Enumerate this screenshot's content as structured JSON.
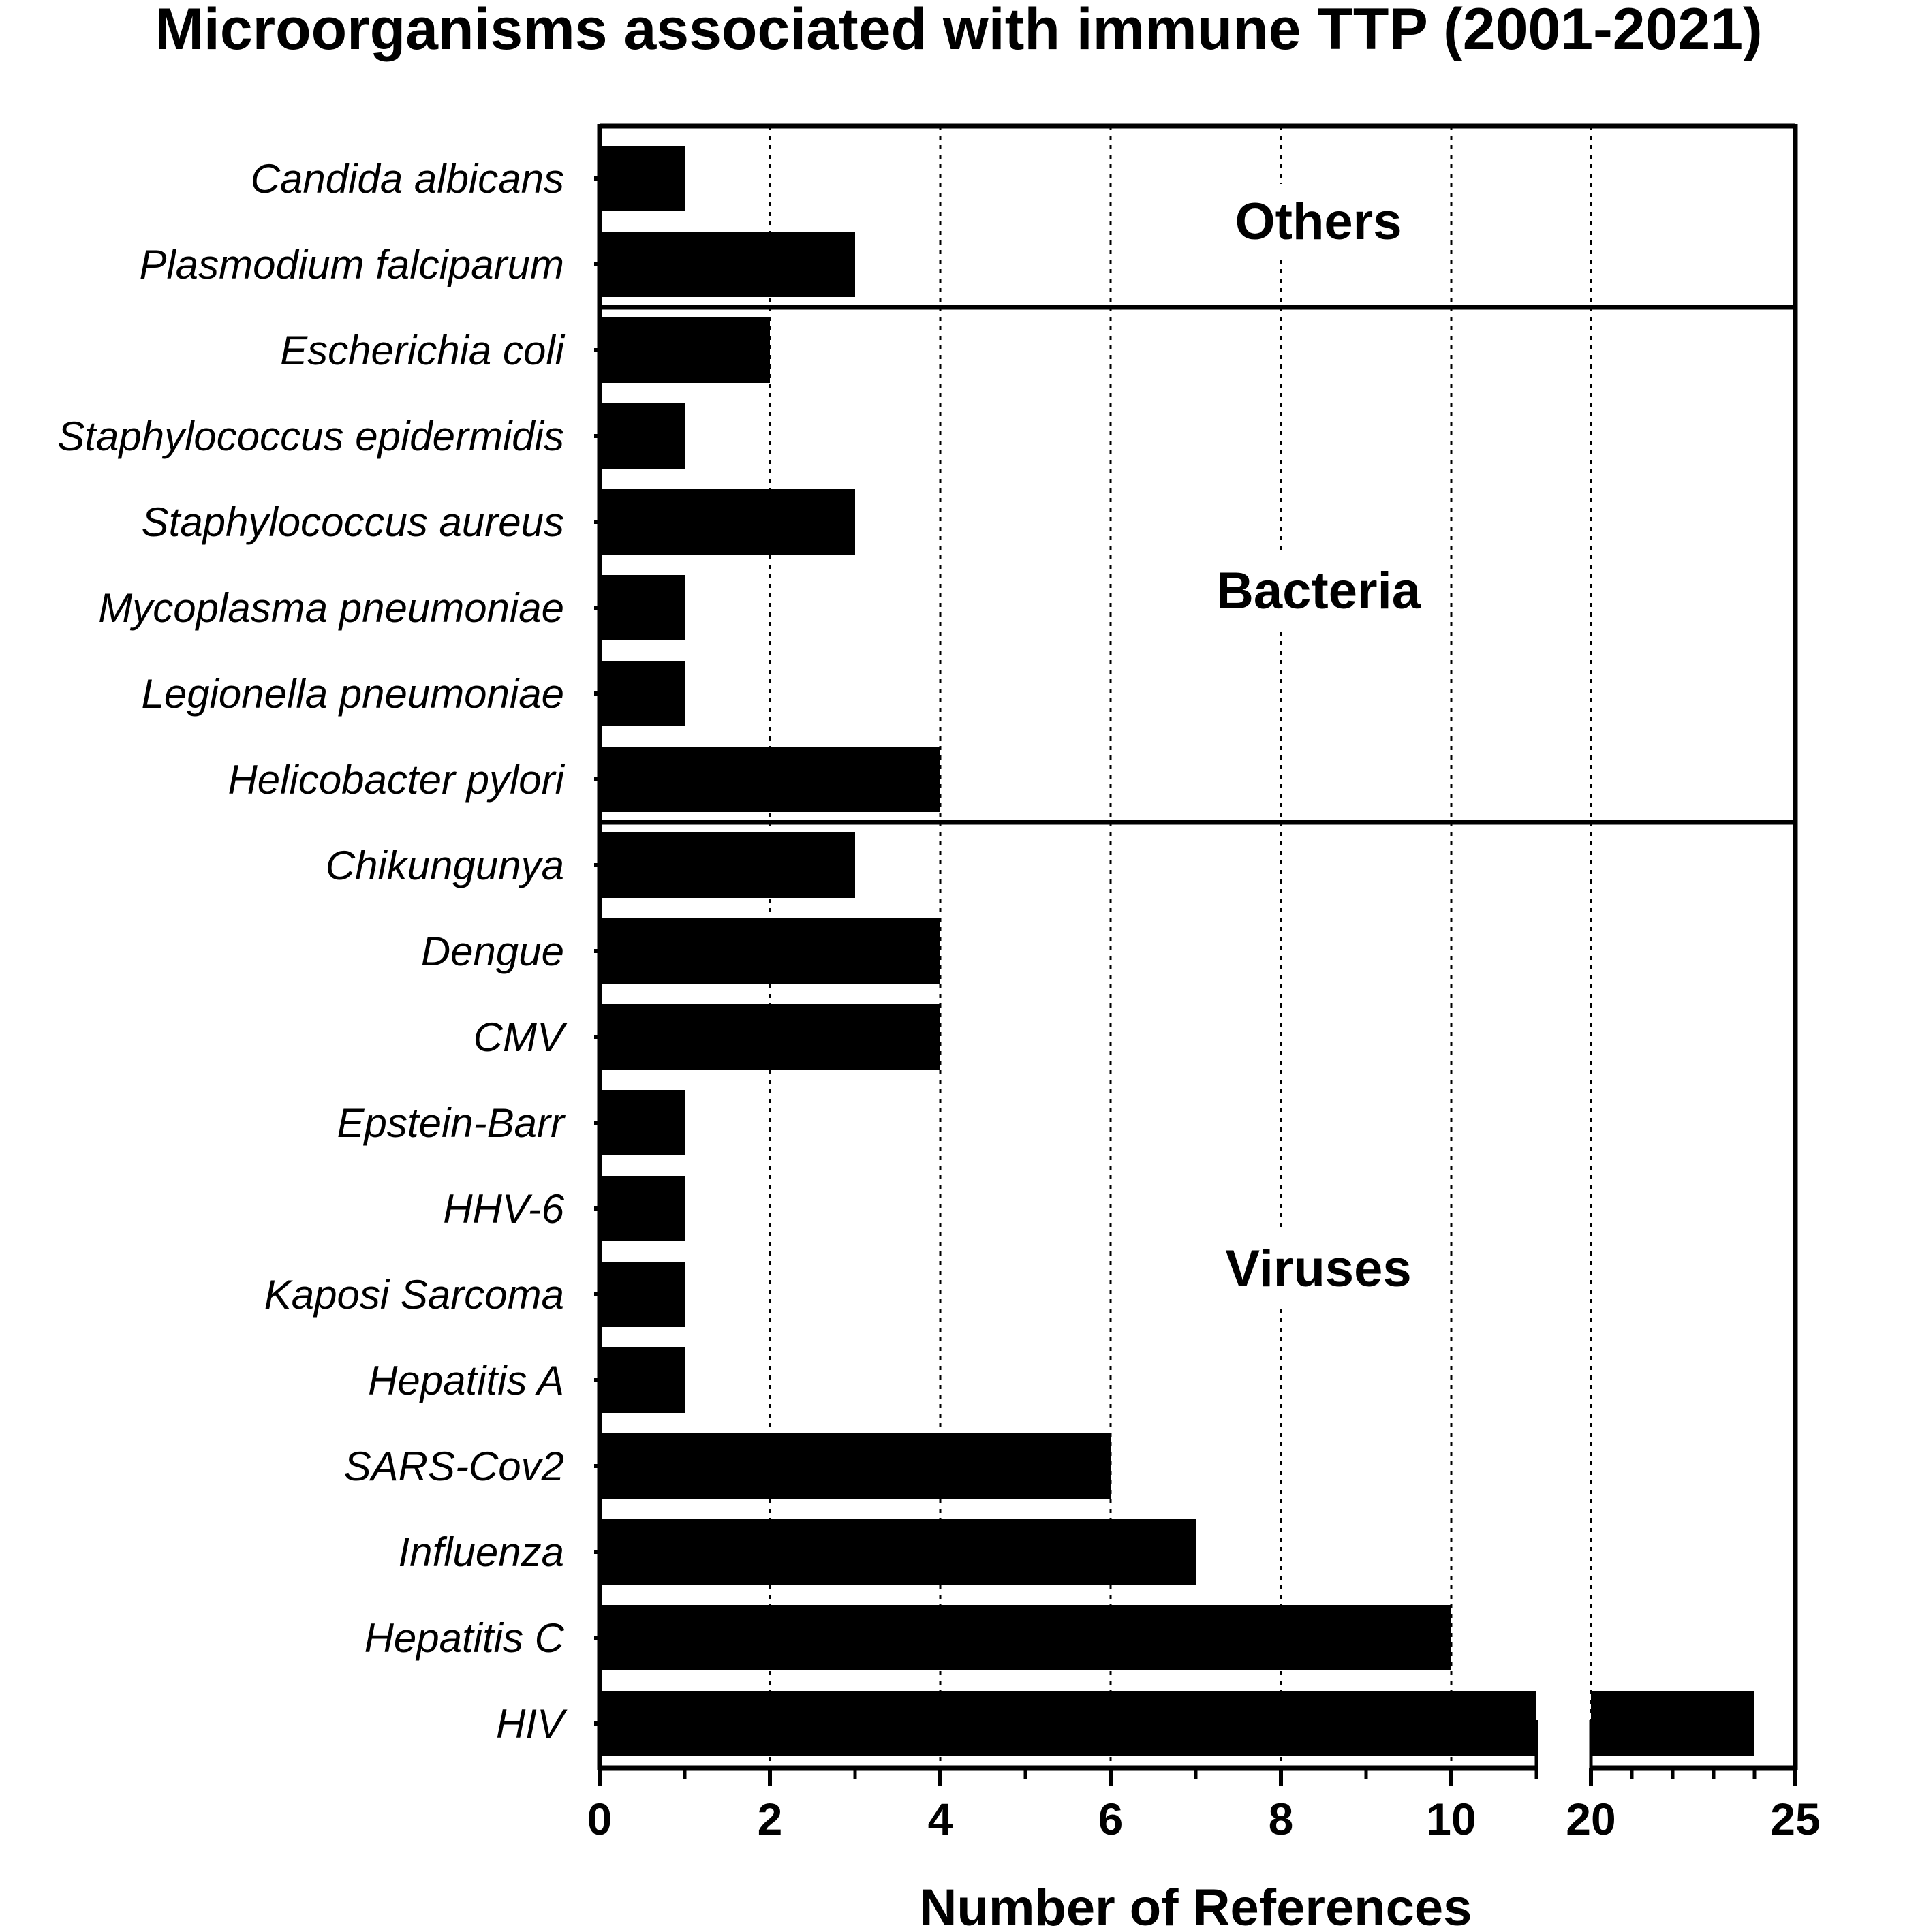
{
  "chart_data": {
    "type": "bar",
    "orientation": "horizontal",
    "title": "Microorganisms associated with immune TTP (2001-2021)",
    "xlabel": "Number of References",
    "ylabel": "",
    "x_axis": {
      "broken": true,
      "segments": [
        {
          "range": [
            0,
            11
          ],
          "major_ticks": [
            0,
            2,
            4,
            6,
            8,
            10
          ],
          "tick_labels": [
            "0",
            "2",
            "4",
            "6",
            "8",
            "10"
          ],
          "minor_step": 1
        },
        {
          "range": [
            20,
            25
          ],
          "major_ticks": [
            20,
            25
          ],
          "tick_labels": [
            "20",
            "25"
          ],
          "minor_step": 1
        }
      ]
    },
    "grid": "vertical dotted",
    "legend": "none",
    "bar_color": "#000000",
    "categories": [
      "Candida albicans",
      "Plasmodium falciparum",
      "Escherichia coli",
      "Staphylococcus epidermidis",
      "Staphylococcus aureus",
      "Mycoplasma pneumoniae",
      "Legionella pneumoniae",
      "Helicobacter pylori",
      "Chikungunya",
      "Dengue",
      "CMV",
      "Epstein-Barr",
      "HHV-6",
      "Kaposi Sarcoma",
      "Hepatitis A",
      "SARS-Cov2",
      "Influenza",
      "Hepatitis C",
      "HIV"
    ],
    "values": [
      1,
      3,
      2,
      1,
      3,
      1,
      1,
      4,
      3,
      4,
      4,
      1,
      1,
      1,
      1,
      6,
      7,
      10,
      24
    ],
    "groups": [
      {
        "label": "Others",
        "categories": [
          "Candida albicans",
          "Plasmodium falciparum"
        ]
      },
      {
        "label": "Bacteria",
        "categories": [
          "Escherichia coli",
          "Staphylococcus epidermidis",
          "Staphylococcus aureus",
          "Mycoplasma pneumoniae",
          "Legionella pneumoniae",
          "Helicobacter pylori"
        ]
      },
      {
        "label": "Viruses",
        "categories": [
          "Chikungunya",
          "Dengue",
          "CMV",
          "Epstein-Barr",
          "HHV-6",
          "Kaposi Sarcoma",
          "Hepatitis A",
          "SARS-Cov2",
          "Influenza",
          "Hepatitis C",
          "HIV"
        ]
      }
    ]
  }
}
